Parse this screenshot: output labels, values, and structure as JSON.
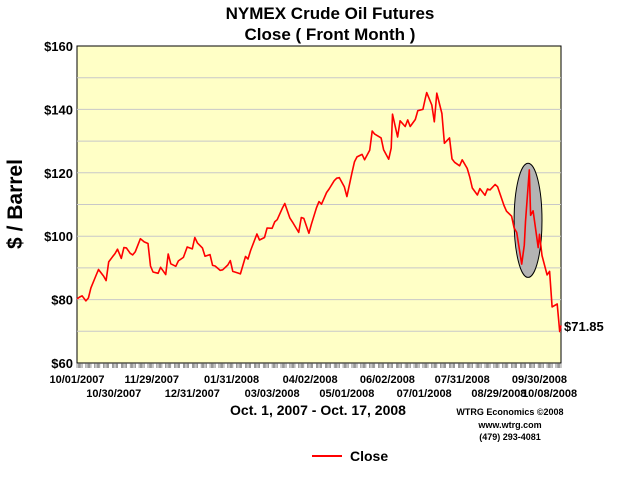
{
  "chart_data": {
    "type": "line",
    "title": "NYMEX Crude Oil Futures",
    "subtitle": "Close ( Front Month )",
    "ylabel": "$ / Barrel",
    "xlabel": "Oct. 1, 2007 - Oct. 17, 2008",
    "ylim": [
      60,
      160
    ],
    "yticks": [
      "$60",
      "$80",
      "$100",
      "$120",
      "$140",
      "$160"
    ],
    "ytick_values": [
      60,
      80,
      100,
      120,
      140,
      160
    ],
    "xlim": [
      "2007-10-01",
      "2008-10-17"
    ],
    "xticks_top_row": [
      {
        "label": "10/01/2007",
        "date": "2007-10-01"
      },
      {
        "label": "11/29/2007",
        "date": "2007-11-29"
      },
      {
        "label": "01/31/2008",
        "date": "2008-01-31"
      },
      {
        "label": "04/02/2008",
        "date": "2008-04-02"
      },
      {
        "label": "06/02/2008",
        "date": "2008-06-02"
      },
      {
        "label": "07/31/2008",
        "date": "2008-07-31"
      },
      {
        "label": "09/30/2008",
        "date": "2008-09-30"
      }
    ],
    "xticks_bottom_row": [
      {
        "label": "10/30/2007",
        "date": "2007-10-30"
      },
      {
        "label": "12/31/2007",
        "date": "2007-12-31"
      },
      {
        "label": "03/03/2008",
        "date": "2008-03-03"
      },
      {
        "label": "05/01/2008",
        "date": "2008-05-01"
      },
      {
        "label": "07/01/2008",
        "date": "2008-07-01"
      },
      {
        "label": "08/29/2008",
        "date": "2008-08-29"
      },
      {
        "label": "10/08/2008",
        "date": "2008-10-08"
      }
    ],
    "grid": true,
    "legend_position": "bottom-center",
    "series": [
      {
        "name": "Close",
        "color": "#ff0000",
        "points": [
          [
            "2007-10-01",
            80.2
          ],
          [
            "2007-10-03",
            80.8
          ],
          [
            "2007-10-05",
            81.2
          ],
          [
            "2007-10-08",
            79.6
          ],
          [
            "2007-10-10",
            80.5
          ],
          [
            "2007-10-12",
            83.7
          ],
          [
            "2007-10-16",
            87.6
          ],
          [
            "2007-10-18",
            89.5
          ],
          [
            "2007-10-22",
            87.4
          ],
          [
            "2007-10-24",
            86.0
          ],
          [
            "2007-10-26",
            91.9
          ],
          [
            "2007-10-29",
            93.5
          ],
          [
            "2007-10-31",
            94.5
          ],
          [
            "2007-11-02",
            95.9
          ],
          [
            "2007-11-05",
            93.0
          ],
          [
            "2007-11-07",
            96.4
          ],
          [
            "2007-11-09",
            96.3
          ],
          [
            "2007-11-12",
            94.6
          ],
          [
            "2007-11-14",
            94.1
          ],
          [
            "2007-11-16",
            95.1
          ],
          [
            "2007-11-20",
            99.2
          ],
          [
            "2007-11-23",
            98.2
          ],
          [
            "2007-11-26",
            97.7
          ],
          [
            "2007-11-28",
            90.6
          ],
          [
            "2007-11-30",
            88.7
          ],
          [
            "2007-12-04",
            88.3
          ],
          [
            "2007-12-06",
            90.2
          ],
          [
            "2007-12-10",
            87.9
          ],
          [
            "2007-12-12",
            94.4
          ],
          [
            "2007-12-14",
            91.3
          ],
          [
            "2007-12-18",
            90.5
          ],
          [
            "2007-12-20",
            92.2
          ],
          [
            "2007-12-24",
            93.3
          ],
          [
            "2007-12-27",
            96.6
          ],
          [
            "2007-12-31",
            96.0
          ],
          [
            "2008-01-02",
            99.6
          ],
          [
            "2008-01-04",
            97.9
          ],
          [
            "2008-01-08",
            96.3
          ],
          [
            "2008-01-10",
            93.7
          ],
          [
            "2008-01-14",
            94.2
          ],
          [
            "2008-01-16",
            90.8
          ],
          [
            "2008-01-18",
            90.6
          ],
          [
            "2008-01-22",
            89.2
          ],
          [
            "2008-01-24",
            89.4
          ],
          [
            "2008-01-28",
            90.9
          ],
          [
            "2008-01-30",
            92.3
          ],
          [
            "2008-02-01",
            88.9
          ],
          [
            "2008-02-05",
            88.4
          ],
          [
            "2008-02-07",
            88.1
          ],
          [
            "2008-02-11",
            93.6
          ],
          [
            "2008-02-13",
            92.8
          ],
          [
            "2008-02-15",
            95.5
          ],
          [
            "2008-02-20",
            100.7
          ],
          [
            "2008-02-22",
            98.8
          ],
          [
            "2008-02-26",
            99.6
          ],
          [
            "2008-02-28",
            102.6
          ],
          [
            "2008-03-03",
            102.5
          ],
          [
            "2008-03-05",
            104.5
          ],
          [
            "2008-03-07",
            105.2
          ],
          [
            "2008-03-11",
            108.8
          ],
          [
            "2008-03-13",
            110.3
          ],
          [
            "2008-03-17",
            105.7
          ],
          [
            "2008-03-19",
            104.5
          ],
          [
            "2008-03-24",
            101.2
          ],
          [
            "2008-03-26",
            105.9
          ],
          [
            "2008-03-28",
            105.6
          ],
          [
            "2008-04-01",
            100.9
          ],
          [
            "2008-04-03",
            103.8
          ],
          [
            "2008-04-07",
            109.0
          ],
          [
            "2008-04-09",
            110.9
          ],
          [
            "2008-04-11",
            110.1
          ],
          [
            "2008-04-15",
            113.8
          ],
          [
            "2008-04-17",
            114.9
          ],
          [
            "2008-04-21",
            117.5
          ],
          [
            "2008-04-23",
            118.3
          ],
          [
            "2008-04-25",
            118.5
          ],
          [
            "2008-04-29",
            115.6
          ],
          [
            "2008-05-01",
            112.5
          ],
          [
            "2008-05-05",
            119.9
          ],
          [
            "2008-05-07",
            123.5
          ],
          [
            "2008-05-09",
            125.0
          ],
          [
            "2008-05-13",
            125.8
          ],
          [
            "2008-05-15",
            124.1
          ],
          [
            "2008-05-19",
            127.1
          ],
          [
            "2008-05-21",
            133.2
          ],
          [
            "2008-05-23",
            132.2
          ],
          [
            "2008-05-28",
            131.0
          ],
          [
            "2008-05-30",
            127.3
          ],
          [
            "2008-06-03",
            124.3
          ],
          [
            "2008-06-05",
            127.8
          ],
          [
            "2008-06-06",
            138.5
          ],
          [
            "2008-06-10",
            131.3
          ],
          [
            "2008-06-12",
            136.4
          ],
          [
            "2008-06-16",
            134.6
          ],
          [
            "2008-06-18",
            136.7
          ],
          [
            "2008-06-20",
            134.6
          ],
          [
            "2008-06-24",
            136.8
          ],
          [
            "2008-06-26",
            139.6
          ],
          [
            "2008-06-30",
            140.0
          ],
          [
            "2008-07-02",
            143.6
          ],
          [
            "2008-07-03",
            145.3
          ],
          [
            "2008-07-07",
            141.4
          ],
          [
            "2008-07-09",
            136.1
          ],
          [
            "2008-07-11",
            145.1
          ],
          [
            "2008-07-15",
            138.7
          ],
          [
            "2008-07-17",
            129.3
          ],
          [
            "2008-07-21",
            131.0
          ],
          [
            "2008-07-23",
            124.4
          ],
          [
            "2008-07-25",
            123.3
          ],
          [
            "2008-07-29",
            122.2
          ],
          [
            "2008-07-31",
            124.1
          ],
          [
            "2008-08-04",
            121.4
          ],
          [
            "2008-08-06",
            118.6
          ],
          [
            "2008-08-08",
            115.2
          ],
          [
            "2008-08-12",
            113.0
          ],
          [
            "2008-08-14",
            115.0
          ],
          [
            "2008-08-18",
            112.9
          ],
          [
            "2008-08-20",
            114.9
          ],
          [
            "2008-08-22",
            114.6
          ],
          [
            "2008-08-26",
            116.3
          ],
          [
            "2008-08-28",
            115.6
          ],
          [
            "2008-09-02",
            109.7
          ],
          [
            "2008-09-04",
            107.9
          ],
          [
            "2008-09-08",
            106.3
          ],
          [
            "2008-09-10",
            102.6
          ],
          [
            "2008-09-12",
            101.2
          ],
          [
            "2008-09-16",
            91.2
          ],
          [
            "2008-09-18",
            97.2
          ],
          [
            "2008-09-19",
            104.6
          ],
          [
            "2008-09-22",
            120.9
          ],
          [
            "2008-09-23",
            106.6
          ],
          [
            "2008-09-25",
            108.0
          ],
          [
            "2008-09-29",
            96.4
          ],
          [
            "2008-09-30",
            100.6
          ],
          [
            "2008-10-02",
            93.9
          ],
          [
            "2008-10-06",
            87.8
          ],
          [
            "2008-10-08",
            88.9
          ],
          [
            "2008-10-10",
            77.7
          ],
          [
            "2008-10-14",
            78.6
          ],
          [
            "2008-10-16",
            69.9
          ],
          [
            "2008-10-17",
            71.85
          ]
        ]
      }
    ],
    "annotations": [
      {
        "text": "$71.85",
        "date": "2008-10-17",
        "value": 71.85
      },
      {
        "type": "ellipse-highlight",
        "date_from": "2008-09-10",
        "date_to": "2008-10-02",
        "value_from": 87,
        "value_to": 123
      }
    ],
    "credits": [
      "WTRG Economics  ©2008",
      "www.wtrg.com",
      "(479) 293-4081"
    ]
  },
  "colors": {
    "plot_background": "#ffffc6",
    "line": "#ff0000",
    "grid": "#c8c8c8",
    "highlight_fill": "#b4b4b4",
    "highlight_stroke": "#000000"
  }
}
